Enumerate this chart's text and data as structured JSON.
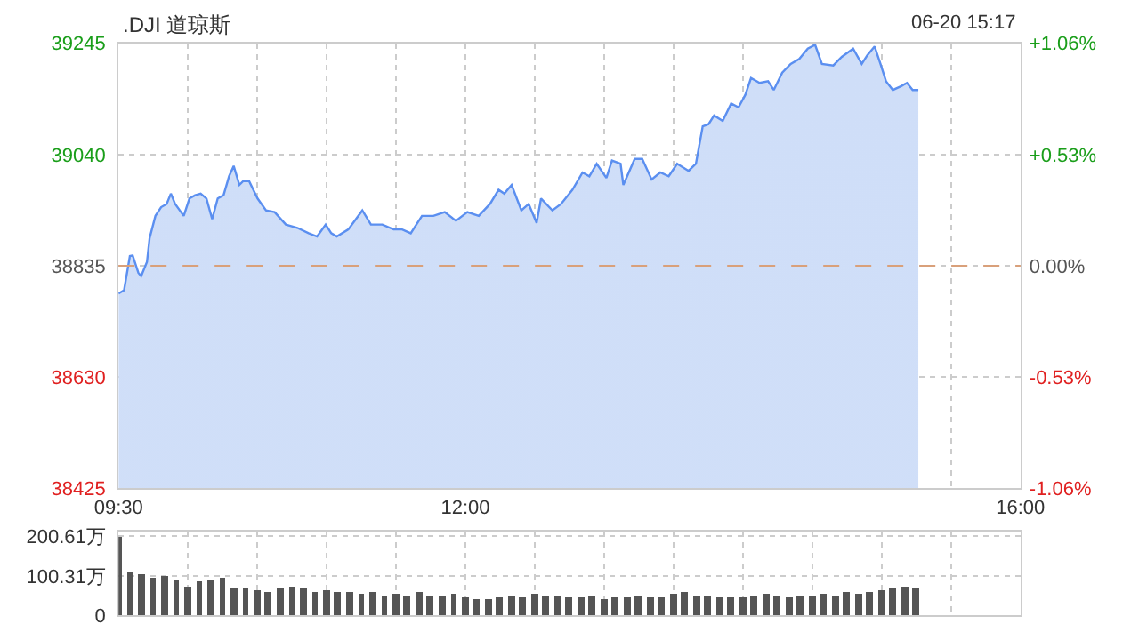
{
  "chart_data": [
    {
      "type": "area",
      "title": ".DJI 道琼斯",
      "annotations": [
        "06-20 15:17"
      ],
      "x": [
        9.5,
        9.54,
        9.582,
        9.602,
        9.643,
        9.663,
        9.705,
        9.724,
        9.766,
        9.807,
        9.847,
        9.877,
        9.908,
        9.97,
        10.011,
        10.052,
        10.092,
        10.134,
        10.175,
        10.215,
        10.257,
        10.297,
        10.33,
        10.371,
        10.399,
        10.441,
        10.502,
        10.563,
        10.625,
        10.706,
        10.788,
        10.87,
        10.931,
        10.993,
        11.033,
        11.073,
        11.156,
        11.257,
        11.319,
        11.401,
        11.483,
        11.544,
        11.606,
        11.687,
        11.769,
        11.851,
        11.932,
        12.014,
        12.096,
        12.177,
        12.239,
        12.28,
        12.333,
        12.403,
        12.456,
        12.513,
        12.545,
        12.627,
        12.689,
        12.771,
        12.844,
        12.893,
        12.946,
        13.016,
        13.056,
        13.118,
        13.138,
        13.22,
        13.274,
        13.342,
        13.404,
        13.465,
        13.526,
        13.608,
        13.661,
        13.71,
        13.752,
        13.792,
        13.854,
        13.915,
        13.968,
        14.017,
        14.058,
        14.12,
        14.181,
        14.222,
        14.283,
        14.344,
        14.406,
        14.467,
        14.52,
        14.569,
        14.651,
        14.712,
        14.794,
        14.856,
        14.896,
        14.949,
        14.991,
        15.031,
        15.08,
        15.141,
        15.182,
        15.223,
        15.264
      ],
      "series": [
        {
          "color": "#5b8ff0",
          "values": [
            38784,
            38790,
            38853,
            38854,
            38822,
            38816,
            38842,
            38886,
            38927,
            38943,
            38949,
            38968,
            38949,
            38927,
            38959,
            38965,
            38968,
            38959,
            38921,
            38959,
            38965,
            39000,
            39019,
            38984,
            38991,
            38991,
            38959,
            38937,
            38934,
            38911,
            38905,
            38895,
            38889,
            38911,
            38895,
            38889,
            38902,
            38937,
            38911,
            38911,
            38902,
            38902,
            38895,
            38927,
            38927,
            38934,
            38918,
            38934,
            38927,
            38949,
            38975,
            38968,
            38984,
            38937,
            38949,
            38914,
            38959,
            38937,
            38949,
            38975,
            39007,
            39000,
            39023,
            38997,
            39029,
            39023,
            38984,
            39032,
            39032,
            38994,
            39007,
            39000,
            39023,
            39010,
            39023,
            39092,
            39096,
            39112,
            39102,
            39134,
            39127,
            39150,
            39181,
            39172,
            39175,
            39159,
            39191,
            39207,
            39216,
            39235,
            39242,
            39207,
            39204,
            39220,
            39235,
            39207,
            39223,
            39239,
            39207,
            39175,
            39159,
            39166,
            39172,
            39159,
            39159
          ]
        }
      ],
      "xlim": [
        9.5,
        16
      ],
      "xticks": [
        {
          "value": 9.5,
          "label": "09:30"
        },
        {
          "value": 10,
          "label": null
        },
        {
          "value": 10.5,
          "label": null
        },
        {
          "value": 11,
          "label": null
        },
        {
          "value": 11.5,
          "label": null
        },
        {
          "value": 12,
          "label": "12:00"
        },
        {
          "value": 12.5,
          "label": null
        },
        {
          "value": 13,
          "label": null
        },
        {
          "value": 13.5,
          "label": null
        },
        {
          "value": 14,
          "label": null
        },
        {
          "value": 14.5,
          "label": null
        },
        {
          "value": 15,
          "label": null
        },
        {
          "value": 15.5,
          "label": null
        },
        {
          "value": 16,
          "label": "16:00"
        }
      ],
      "ylim": [
        38425,
        39245
      ],
      "yticks": [
        38425,
        38630,
        38835,
        39040,
        39245
      ],
      "y2lim": [
        -1.06,
        1.06
      ],
      "y2ticks": [
        {
          "value": -1.06,
          "label": "-1.06%"
        },
        {
          "value": -0.53,
          "label": "-0.53%"
        },
        {
          "value": 0,
          "label": "0.00%"
        },
        {
          "value": 0.53,
          "label": "+0.53%"
        },
        {
          "value": 1.06,
          "label": "+1.06%"
        }
      ],
      "ref_lines": [
        {
          "axis": "y",
          "value": 38835,
          "color": "#d9a07a",
          "line_style": "dashed"
        }
      ],
      "grid": true
    },
    {
      "type": "bar",
      "color": "#555555",
      "x": [
        9.5,
        9.583,
        9.667,
        9.75,
        9.833,
        9.917,
        10,
        10.083,
        10.167,
        10.25,
        10.333,
        10.417,
        10.5,
        10.583,
        10.667,
        10.75,
        10.833,
        10.917,
        11,
        11.083,
        11.167,
        11.25,
        11.333,
        11.417,
        11.5,
        11.583,
        11.667,
        11.75,
        11.833,
        11.917,
        12,
        12.083,
        12.167,
        12.25,
        12.333,
        12.417,
        12.5,
        12.583,
        12.667,
        12.75,
        12.833,
        12.917,
        13,
        13.083,
        13.167,
        13.25,
        13.333,
        13.417,
        13.5,
        13.583,
        13.667,
        13.75,
        13.833,
        13.917,
        14,
        14.083,
        14.167,
        14.25,
        14.333,
        14.417,
        14.5,
        14.583,
        14.667,
        14.75,
        14.833,
        14.917,
        15,
        15.083,
        15.167,
        15.25
      ],
      "values": [
        199,
        110,
        105,
        95,
        100,
        90,
        75,
        85,
        90,
        95,
        70,
        68,
        65,
        60,
        70,
        72,
        68,
        62,
        65,
        60,
        58,
        55,
        60,
        52,
        55,
        50,
        58,
        52,
        50,
        55,
        45,
        40,
        42,
        48,
        50,
        45,
        55,
        50,
        52,
        48,
        45,
        50,
        42,
        45,
        48,
        50,
        45,
        48,
        55,
        60,
        52,
        50,
        48,
        45,
        48,
        50,
        55,
        52,
        48,
        50,
        52,
        55,
        50,
        58,
        55,
        60,
        65,
        70,
        72,
        70
      ],
      "xlim": [
        9.5,
        16
      ],
      "xticks": [
        9.5,
        10,
        10.5,
        11,
        11.5,
        12,
        12.5,
        13,
        13.5,
        14,
        14.5,
        15,
        15.5,
        16
      ],
      "ylim": [
        0,
        213
      ],
      "yticks": [
        0,
        {
          "value": 100.31,
          "label": "100.31万"
        },
        {
          "value": 200.61,
          "label": "200.61万"
        }
      ],
      "grid": true,
      "tick_labels": "y"
    }
  ]
}
